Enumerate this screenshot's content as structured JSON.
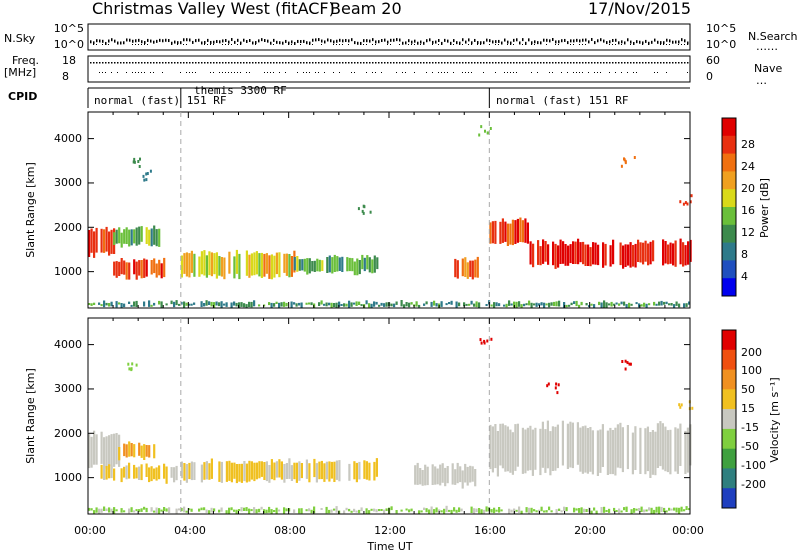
{
  "header": {
    "radar": "Christmas Valley West (fitACF)",
    "beam": "Beam 20",
    "date": "17/Nov/2015"
  },
  "status_panel": {
    "nsky_label": "N.Sky",
    "nsky_ticks": [
      "10^5",
      "10^0"
    ],
    "nsearch_label": "N.Search",
    "nsearch_ticks": [
      "10^5",
      "10^0"
    ],
    "freq_label_1": "Freq.",
    "freq_label_2": "[MHz]",
    "freq_ticks": [
      "18",
      "8"
    ],
    "nave_label": "Nave",
    "nave_ticks": [
      "60",
      "0"
    ],
    "cpid_label": "CPID",
    "cpid_segments": [
      {
        "start": 0.0,
        "end": 3.7,
        "label": "normal (fast) 151 RF"
      },
      {
        "start": 3.7,
        "end": 16.0,
        "label": "themis 3300 RF"
      },
      {
        "start": 16.0,
        "end": 24.0,
        "label": "normal (fast) 151 RF"
      }
    ]
  },
  "axes": {
    "ylabel": "Slant Range [km]",
    "xlabel": "Time UT",
    "yticks": [
      "1000",
      "2000",
      "3000",
      "4000"
    ],
    "xticks": [
      "00:00",
      "04:00",
      "08:00",
      "12:00",
      "16:00",
      "20:00",
      "00:00"
    ]
  },
  "power_colorbar": {
    "label": "Power [dB]",
    "ticks": [
      "4",
      "8",
      "12",
      "16",
      "20",
      "24",
      "28"
    ],
    "colors": [
      "#0000ee",
      "#1f4fbf",
      "#2e7a8a",
      "#3c8a4c",
      "#6abf3a",
      "#d9d91a",
      "#f0a020",
      "#f07010",
      "#e83010",
      "#e00000"
    ]
  },
  "velocity_colorbar": {
    "label": "Velocity [m s⁻¹]",
    "ticks": [
      "200",
      "100",
      "50",
      "15",
      "-15",
      "-50",
      "-100",
      "-200"
    ],
    "colors": [
      "#1f3fbf",
      "#2f7f7f",
      "#3fa03f",
      "#7fcf3f",
      "#c8c8c0",
      "#f0c020",
      "#f09020",
      "#f05010",
      "#e00000"
    ]
  },
  "chart_data": [
    {
      "type": "heatmap",
      "title": "Power",
      "xlabel": "Time UT",
      "ylabel": "Slant Range [km]",
      "x_range_hours": [
        0,
        24
      ],
      "y_range_km": [
        180,
        4600
      ],
      "value_label": "Power [dB]",
      "value_range": [
        0,
        30
      ],
      "bands": [
        {
          "t0": 0.0,
          "t1": 1.0,
          "r0": 1350,
          "r1": 2000,
          "value": 27
        },
        {
          "t0": 1.0,
          "t1": 2.8,
          "r0": 1550,
          "r1": 2000,
          "value": 12
        },
        {
          "t0": 1.0,
          "t1": 3.0,
          "r0": 850,
          "r1": 1300,
          "value": 25
        },
        {
          "t0": 3.7,
          "t1": 8.2,
          "r0": 850,
          "r1": 1450,
          "value": 18
        },
        {
          "t0": 8.2,
          "t1": 11.5,
          "r0": 950,
          "r1": 1350,
          "value": 12
        },
        {
          "t0": 14.6,
          "t1": 15.5,
          "r0": 800,
          "r1": 1300,
          "value": 22
        },
        {
          "t0": 16.0,
          "t1": 17.5,
          "r0": 1600,
          "r1": 2200,
          "value": 26
        },
        {
          "t0": 17.5,
          "t1": 24.0,
          "r0": 1100,
          "r1": 1700,
          "value": 28
        },
        {
          "t0": 0.0,
          "t1": 24.0,
          "r0": 180,
          "r1": 350,
          "value": 10
        }
      ],
      "scatter": [
        {
          "t": 1.8,
          "r": 3500,
          "value": 10
        },
        {
          "t": 2.2,
          "r": 3200,
          "value": 6
        },
        {
          "t": 15.8,
          "r": 4200,
          "value": 14
        },
        {
          "t": 21.5,
          "r": 3500,
          "value": 22
        },
        {
          "t": 23.8,
          "r": 2650,
          "value": 24
        },
        {
          "t": 11.0,
          "r": 2400,
          "value": 10
        }
      ]
    },
    {
      "type": "heatmap",
      "title": "Velocity",
      "xlabel": "Time UT",
      "ylabel": "Slant Range [km]",
      "x_range_hours": [
        0,
        24
      ],
      "y_range_km": [
        180,
        4600
      ],
      "value_label": "Velocity [m s⁻¹]",
      "value_range": [
        -200,
        200
      ],
      "bands": [
        {
          "t0": 0.0,
          "t1": 1.2,
          "r0": 1200,
          "r1": 2000,
          "value": 0
        },
        {
          "t0": 1.2,
          "t1": 2.6,
          "r0": 1400,
          "r1": 1800,
          "value": -70
        },
        {
          "t0": 0.5,
          "t1": 3.5,
          "r0": 900,
          "r1": 1300,
          "value": -30
        },
        {
          "t0": 3.7,
          "t1": 11.5,
          "r0": 900,
          "r1": 1400,
          "value": -30
        },
        {
          "t0": 13.0,
          "t1": 15.5,
          "r0": 800,
          "r1": 1300,
          "value": 0
        },
        {
          "t0": 16.0,
          "t1": 24.0,
          "r0": 1100,
          "r1": 2200,
          "value": 0
        },
        {
          "t0": 0.0,
          "t1": 24.0,
          "r0": 180,
          "r1": 350,
          "value": 30
        }
      ],
      "scatter": [
        {
          "t": 15.8,
          "r": 4150,
          "value": -200
        },
        {
          "t": 21.5,
          "r": 3550,
          "value": -200
        },
        {
          "t": 18.5,
          "r": 3050,
          "value": -200
        },
        {
          "t": 1.8,
          "r": 3500,
          "value": 30
        },
        {
          "t": 23.8,
          "r": 2650,
          "value": -50
        }
      ]
    }
  ]
}
